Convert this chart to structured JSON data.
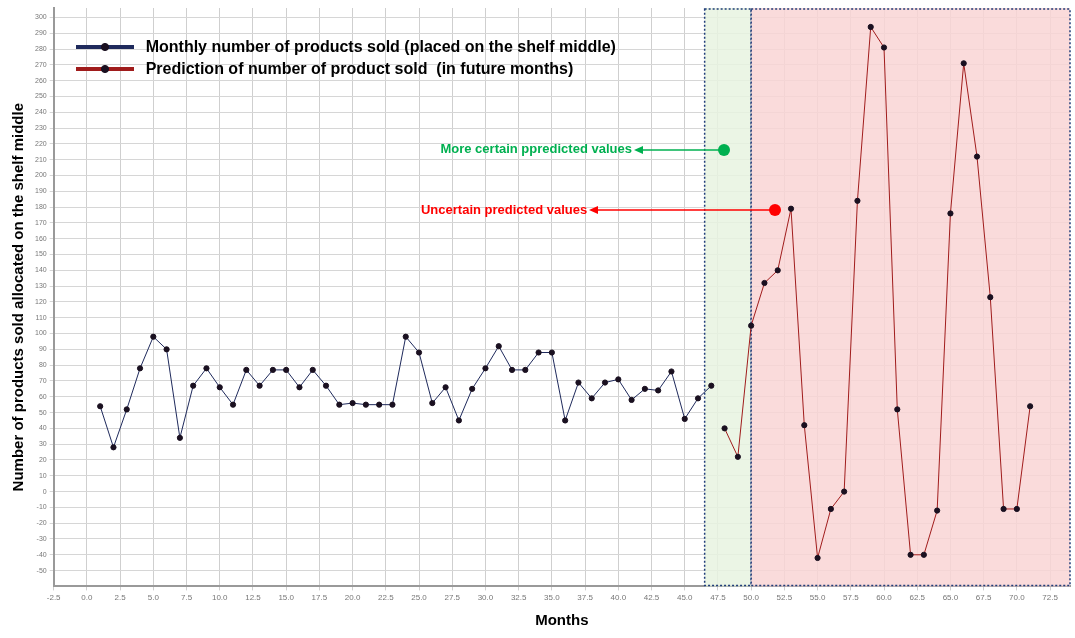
{
  "chart_data": {
    "type": "line",
    "xlabel": "Months",
    "ylabel": "Number of products sold allocated on the shelf middle",
    "series": [
      {
        "name": "Monthly number of products sold (placed on the shelf middle)",
        "color": "#1f2a5c",
        "x": [
          1,
          2,
          3,
          4,
          5,
          6,
          7,
          8,
          9,
          10,
          11,
          12,
          13,
          14,
          15,
          16,
          17,
          18,
          19,
          20,
          21,
          22,
          23,
          24,
          25,
          26,
          27,
          28,
          29,
          30,
          31,
          32,
          33,
          34,
          35,
          36,
          37,
          38,
          39,
          40,
          41,
          42,
          43,
          44,
          45,
          46,
          47
        ],
        "values": [
          54,
          28,
          52,
          78,
          98,
          90,
          34,
          67,
          78,
          66,
          55,
          77,
          67,
          77,
          77,
          66,
          77,
          67,
          55,
          56,
          55,
          55,
          55,
          98,
          88,
          56,
          66,
          45,
          65,
          78,
          92,
          77,
          77,
          88,
          88,
          45,
          69,
          59,
          69,
          71,
          58,
          65,
          64,
          76,
          46,
          59,
          67
        ]
      },
      {
        "name": "Prediction of number of product sold  (in future months)",
        "color": "#a01c1c",
        "x": [
          48,
          49,
          50,
          51,
          52,
          53,
          54,
          55,
          56,
          57,
          58,
          59,
          60,
          61,
          62,
          63,
          64,
          65,
          66,
          67,
          68,
          69,
          70,
          71
        ],
        "values": [
          40,
          22,
          105,
          132,
          140,
          179,
          42,
          -42,
          -11,
          0,
          184,
          294,
          281,
          52,
          -40,
          -40,
          -12,
          176,
          271,
          212,
          123,
          -11,
          -11,
          54
        ]
      }
    ],
    "bands": [
      {
        "axis": "x",
        "from": 46.5,
        "to": 50,
        "label": "More certain ppredicted values",
        "color": "#e8f3e0"
      },
      {
        "axis": "x",
        "from": 50,
        "to": 74,
        "label": "Uncertain predicted values",
        "color": "#f9d5d5"
      }
    ],
    "xlim": [
      -2.5,
      74
    ],
    "xticks": [
      {
        "value": -2.5,
        "label": "-2.5"
      },
      {
        "value": 0,
        "label": "0.0"
      },
      {
        "value": 2.5,
        "label": "2.5"
      },
      {
        "value": 5,
        "label": "5.0"
      },
      {
        "value": 7.5,
        "label": "7.5"
      },
      {
        "value": 10,
        "label": "10.0"
      },
      {
        "value": 12.5,
        "label": "12.5"
      },
      {
        "value": 15,
        "label": "15.0"
      },
      {
        "value": 17.5,
        "label": "17.5"
      },
      {
        "value": 20,
        "label": "20.0"
      },
      {
        "value": 22.5,
        "label": "22.5"
      },
      {
        "value": 25,
        "label": "25.0"
      },
      {
        "value": 27.5,
        "label": "27.5"
      },
      {
        "value": 30,
        "label": "30.0"
      },
      {
        "value": 32.5,
        "label": "32.5"
      },
      {
        "value": 35,
        "label": "35.0"
      },
      {
        "value": 37.5,
        "label": "37.5"
      },
      {
        "value": 40,
        "label": "40.0"
      },
      {
        "value": 42.5,
        "label": "42.5"
      },
      {
        "value": 45,
        "label": "45.0"
      },
      {
        "value": 47.5,
        "label": "47.5"
      },
      {
        "value": 50,
        "label": "50.0"
      },
      {
        "value": 52.5,
        "label": "52.5"
      },
      {
        "value": 55,
        "label": "55.0"
      },
      {
        "value": 57.5,
        "label": "57.5"
      },
      {
        "value": 60,
        "label": "60.0"
      },
      {
        "value": 62.5,
        "label": "62.5"
      },
      {
        "value": 65,
        "label": "65.0"
      },
      {
        "value": 67.5,
        "label": "67.5"
      },
      {
        "value": 70,
        "label": "70.0"
      },
      {
        "value": 72.5,
        "label": "72.5"
      }
    ],
    "ylim": [
      -60,
      306
    ],
    "yticks": [
      -50,
      -40,
      -30,
      -20,
      -10,
      0,
      10,
      20,
      30,
      40,
      50,
      60,
      70,
      80,
      90,
      100,
      110,
      120,
      130,
      140,
      150,
      160,
      170,
      180,
      190,
      200,
      210,
      220,
      230,
      240,
      250,
      260,
      270,
      280,
      290,
      300
    ],
    "grid": true,
    "legend": "top left",
    "marker": "circle",
    "line_style": "solid"
  }
}
